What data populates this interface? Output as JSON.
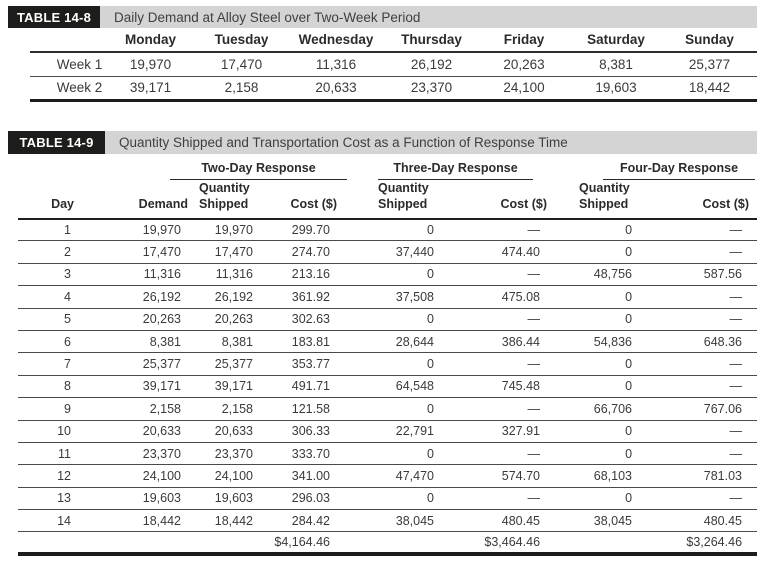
{
  "colors": {
    "bar_gray": "#d4d4d4",
    "tag_black": "#1d1d1b",
    "rule_black": "#1c1c1c",
    "text": "#3a3a3a"
  },
  "t8": {
    "tag": "TABLE 14-8",
    "title": "Daily Demand at Alloy Steel over Two-Week Period",
    "columns": [
      "Monday",
      "Tuesday",
      "Wednesday",
      "Thursday",
      "Friday",
      "Saturday",
      "Sunday"
    ],
    "rows": [
      {
        "label": "Week 1",
        "values": [
          "19,970",
          "17,470",
          "11,316",
          "26,192",
          "20,263",
          "8,381",
          "25,377"
        ]
      },
      {
        "label": "Week 2",
        "values": [
          "39,171",
          "2,158",
          "20,633",
          "23,370",
          "24,100",
          "19,603",
          "18,442"
        ]
      }
    ]
  },
  "t9": {
    "tag": "TABLE 14-9",
    "title": "Quantity Shipped and Transportation Cost as a Function of Response Time",
    "groups": [
      "Two-Day Response",
      "Three-Day Response",
      "Four-Day Response"
    ],
    "headers": {
      "day": "Day",
      "demand": "Demand",
      "qty": "Quantity Shipped",
      "cost": "Cost ($)"
    },
    "rows": [
      [
        "1",
        "19,970",
        "19,970",
        "299.70",
        "0",
        "—",
        "0",
        "—"
      ],
      [
        "2",
        "17,470",
        "17,470",
        "274.70",
        "37,440",
        "474.40",
        "0",
        "—"
      ],
      [
        "3",
        "11,316",
        "11,316",
        "213.16",
        "0",
        "—",
        "48,756",
        "587.56"
      ],
      [
        "4",
        "26,192",
        "26,192",
        "361.92",
        "37,508",
        "475.08",
        "0",
        "—"
      ],
      [
        "5",
        "20,263",
        "20,263",
        "302.63",
        "0",
        "—",
        "0",
        "—"
      ],
      [
        "6",
        "8,381",
        "8,381",
        "183.81",
        "28,644",
        "386.44",
        "54,836",
        "648.36"
      ],
      [
        "7",
        "25,377",
        "25,377",
        "353.77",
        "0",
        "—",
        "0",
        "—"
      ],
      [
        "8",
        "39,171",
        "39,171",
        "491.71",
        "64,548",
        "745.48",
        "0",
        "—"
      ],
      [
        "9",
        "2,158",
        "2,158",
        "121.58",
        "0",
        "—",
        "66,706",
        "767.06"
      ],
      [
        "10",
        "20,633",
        "20,633",
        "306.33",
        "22,791",
        "327.91",
        "0",
        "—"
      ],
      [
        "11",
        "23,370",
        "23,370",
        "333.70",
        "0",
        "—",
        "0",
        "—"
      ],
      [
        "12",
        "24,100",
        "24,100",
        "341.00",
        "47,470",
        "574.70",
        "68,103",
        "781.03"
      ],
      [
        "13",
        "19,603",
        "19,603",
        "296.03",
        "0",
        "—",
        "0",
        "—"
      ],
      [
        "14",
        "18,442",
        "18,442",
        "284.42",
        "38,045",
        "480.45",
        "38,045",
        "480.45"
      ]
    ],
    "totals": [
      "$4,164.46",
      "$3,464.46",
      "$3,264.46"
    ]
  }
}
